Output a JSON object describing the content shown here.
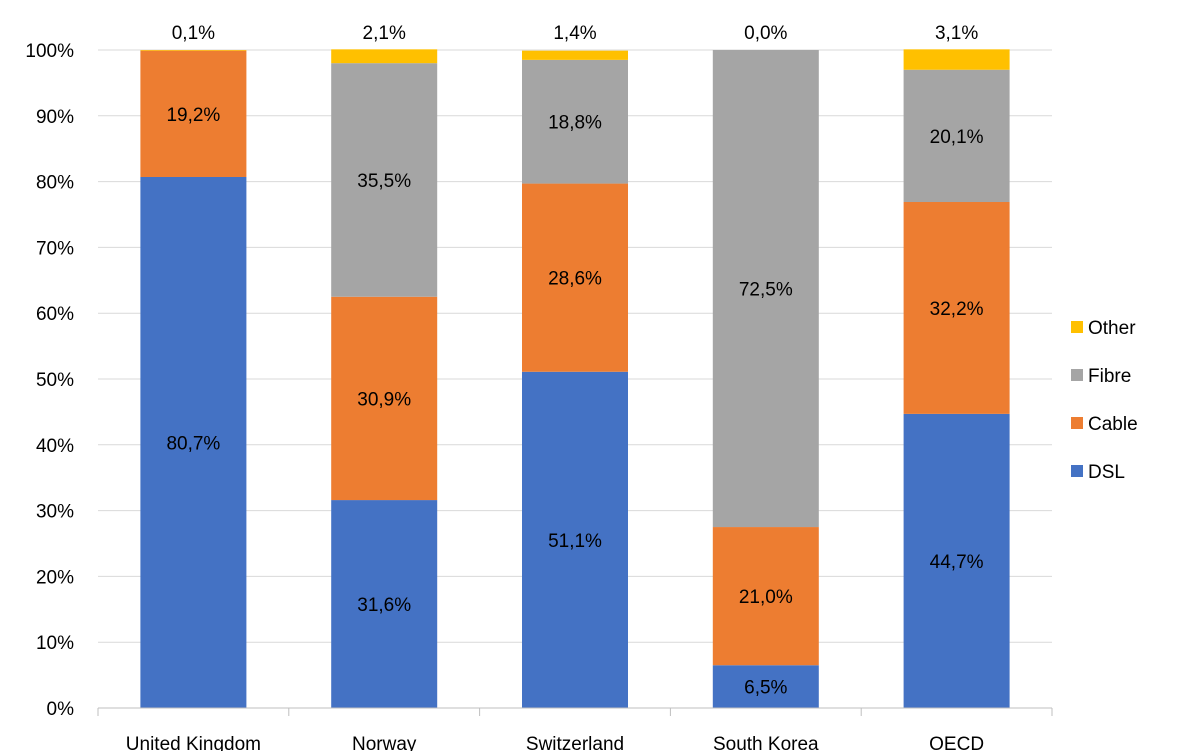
{
  "chart_data": {
    "type": "bar",
    "stacked": true,
    "categories": [
      "United Kingdom",
      "Norway",
      "Switzerland",
      "South Korea",
      "OECD"
    ],
    "series": [
      {
        "name": "DSL",
        "color": "#4472C4",
        "values": [
          80.7,
          31.6,
          51.1,
          6.5,
          44.7
        ],
        "labels": [
          "80,7%",
          "31,6%",
          "51,1%",
          "6,5%",
          "44,7%"
        ]
      },
      {
        "name": "Cable",
        "color": "#ED7D31",
        "values": [
          19.2,
          30.9,
          28.6,
          21.0,
          32.2
        ],
        "labels": [
          "19,2%",
          "30,9%",
          "28,6%",
          "21,0%",
          "32,2%"
        ]
      },
      {
        "name": "Fibre",
        "color": "#A5A5A5",
        "values": [
          0.0,
          35.5,
          18.8,
          72.5,
          20.1
        ],
        "labels": [
          "",
          "35,5%",
          "18,8%",
          "72,5%",
          "20,1%"
        ]
      },
      {
        "name": "Other",
        "color": "#FFC000",
        "values": [
          0.1,
          2.1,
          1.4,
          0.0,
          3.1
        ],
        "labels": [
          "0,1%",
          "2,1%",
          "1,4%",
          "0,0%",
          "3,1%"
        ]
      }
    ],
    "ylim": [
      0,
      100
    ],
    "yticks": [
      "0%",
      "10%",
      "20%",
      "30%",
      "40%",
      "50%",
      "60%",
      "70%",
      "80%",
      "90%",
      "100%"
    ],
    "grid": true,
    "legend": "right",
    "title": "",
    "xlabel": "",
    "ylabel": ""
  }
}
